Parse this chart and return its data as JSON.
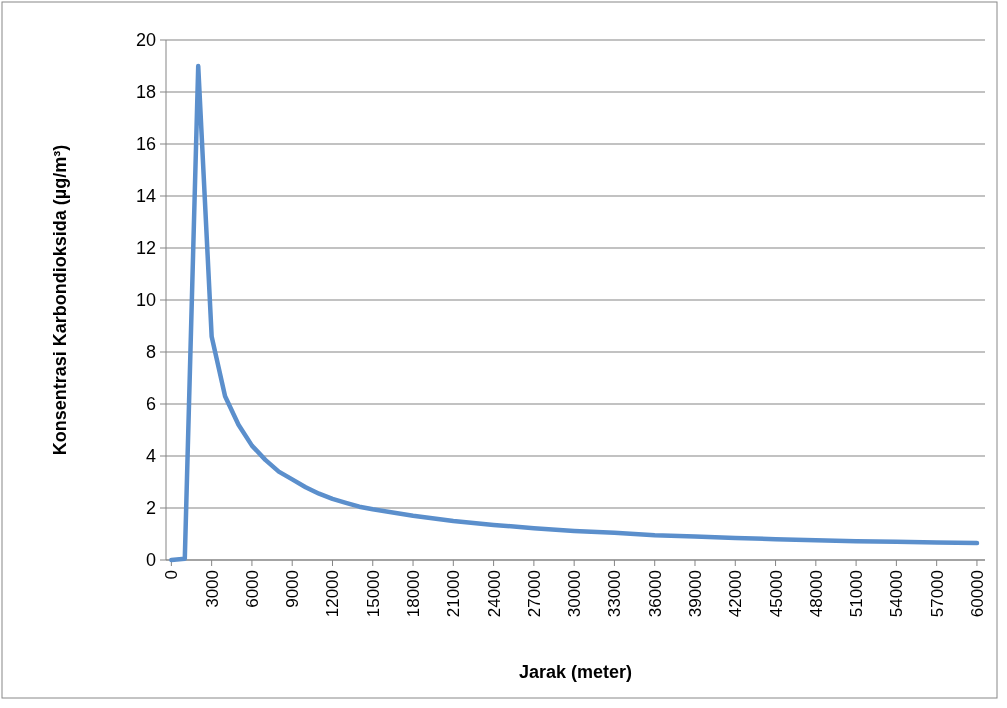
{
  "chart_data": {
    "type": "line",
    "xlabel": "Jarak (meter)",
    "ylabel": "Konsentrasi Karbondioksida (µg/m³)",
    "xlim": [
      -400,
      60600
    ],
    "xticks": [
      0,
      3000,
      6000,
      9000,
      12000,
      15000,
      18000,
      21000,
      24000,
      27000,
      30000,
      33000,
      36000,
      39000,
      42000,
      45000,
      48000,
      51000,
      54000,
      57000,
      60000
    ],
    "ylim": [
      0,
      20
    ],
    "yticks": [
      0,
      2,
      4,
      6,
      8,
      10,
      12,
      14,
      16,
      18,
      20
    ],
    "grid": "y",
    "marker": "none",
    "line_style": "solid",
    "series": [
      {
        "color": "#5b8fcc",
        "x": [
          0,
          1000,
          2000,
          3000,
          4000,
          5000,
          6000,
          7000,
          8000,
          9000,
          10000,
          11000,
          12000,
          13000,
          14000,
          15000,
          18000,
          21000,
          24000,
          27000,
          30000,
          33000,
          36000,
          39000,
          42000,
          45000,
          48000,
          51000,
          54000,
          57000,
          60000
        ],
        "values": [
          0,
          0.05,
          19,
          8.6,
          6.3,
          5.2,
          4.4,
          3.85,
          3.4,
          3.1,
          2.8,
          2.55,
          2.35,
          2.2,
          2.05,
          1.95,
          1.7,
          1.5,
          1.35,
          1.22,
          1.12,
          1.05,
          0.95,
          0.9,
          0.85,
          0.8,
          0.76,
          0.72,
          0.7,
          0.67,
          0.65
        ]
      }
    ]
  }
}
